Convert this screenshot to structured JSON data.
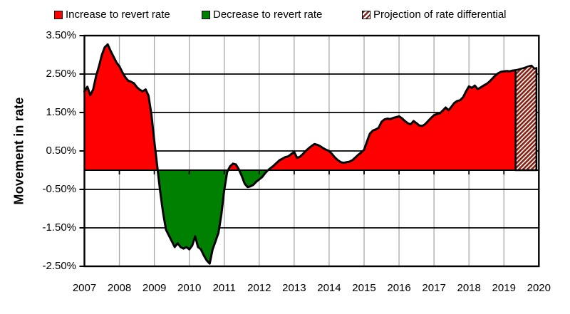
{
  "legend": {
    "items": [
      {
        "label": "Increase to revert rate",
        "swatch": "red-solid"
      },
      {
        "label": "Decrease to revert rate",
        "swatch": "green-solid"
      },
      {
        "label": "Projection of rate differential",
        "swatch": "red-hatch"
      }
    ]
  },
  "y_axis": {
    "title": "Movement in rate",
    "tick_labels": [
      "3.50%",
      "2.50%",
      "1.50%",
      "0.50%",
      "-0.50%",
      "-1.50%",
      "-2.50%"
    ],
    "tick_values": [
      3.5,
      2.5,
      1.5,
      0.5,
      -0.5,
      -1.5,
      -2.5
    ]
  },
  "x_axis": {
    "tick_labels": [
      "2007",
      "2008",
      "2009",
      "2010",
      "2011",
      "2012",
      "2013",
      "2014",
      "2015",
      "2016",
      "2017",
      "2018",
      "2019",
      "2020"
    ],
    "tick_values": [
      2007,
      2008,
      2009,
      2010,
      2011,
      2012,
      2013,
      2014,
      2015,
      2016,
      2017,
      2018,
      2019,
      2020
    ]
  },
  "colors": {
    "increase_fill": "#FF0000",
    "decrease_fill": "#008000",
    "projection_hatch": "#8B2314",
    "line": "#000000",
    "grid_horizontal": "#000000",
    "grid_vertical": "#A8A8A8",
    "border": "#000000"
  },
  "chart_data": {
    "type": "area",
    "title": "",
    "xlabel": "",
    "ylabel": "Movement in rate",
    "unit": "percent",
    "ylim": [
      -2.5,
      3.5
    ],
    "xlim": [
      2007,
      2020
    ],
    "grid": "horizontal black major lines every 1.00%, vertical gray lines every year",
    "legend_position": "top-center",
    "series": [
      {
        "name": "Movement in rate (actual)",
        "start": "2007-01",
        "frequency": "monthly",
        "fill_positive": "#FF0000",
        "fill_negative": "#008000",
        "values": [
          2.05,
          2.17,
          1.95,
          2.1,
          2.45,
          2.7,
          3.0,
          3.2,
          3.27,
          3.1,
          2.95,
          2.8,
          2.7,
          2.55,
          2.42,
          2.33,
          2.3,
          2.26,
          2.16,
          2.09,
          2.05,
          2.1,
          1.94,
          1.45,
          0.75,
          0.1,
          -0.55,
          -1.11,
          -1.55,
          -1.7,
          -1.85,
          -2.0,
          -1.9,
          -2.0,
          -2.04,
          -2.0,
          -2.06,
          -1.96,
          -1.72,
          -2.0,
          -2.06,
          -2.22,
          -2.35,
          -2.43,
          -2.06,
          -1.85,
          -1.63,
          -1.15,
          -0.52,
          -0.05,
          0.1,
          0.17,
          0.15,
          0.02,
          -0.15,
          -0.35,
          -0.44,
          -0.42,
          -0.38,
          -0.3,
          -0.24,
          -0.18,
          -0.08,
          0.0,
          0.06,
          0.12,
          0.19,
          0.26,
          0.3,
          0.34,
          0.36,
          0.42,
          0.47,
          0.32,
          0.35,
          0.42,
          0.5,
          0.57,
          0.63,
          0.68,
          0.66,
          0.62,
          0.57,
          0.53,
          0.5,
          0.42,
          0.33,
          0.26,
          0.21,
          0.19,
          0.21,
          0.22,
          0.26,
          0.33,
          0.4,
          0.46,
          0.53,
          0.75,
          0.95,
          1.03,
          1.06,
          1.1,
          1.26,
          1.32,
          1.34,
          1.33,
          1.36,
          1.38,
          1.4,
          1.35,
          1.28,
          1.22,
          1.19,
          1.28,
          1.22,
          1.16,
          1.15,
          1.2,
          1.28,
          1.36,
          1.43,
          1.46,
          1.48,
          1.55,
          1.63,
          1.56,
          1.65,
          1.75,
          1.8,
          1.82,
          1.9,
          2.05,
          2.18,
          2.14,
          2.2,
          2.11,
          2.15,
          2.2,
          2.24,
          2.3,
          2.38,
          2.46,
          2.52,
          2.56,
          2.57,
          2.58,
          2.57,
          2.59,
          2.6
        ]
      },
      {
        "name": "Projection of rate differential",
        "style": "hatched",
        "hatch_color": "#8B2314",
        "points": [
          [
            2019.333,
            2.6
          ],
          [
            2019.42,
            2.62
          ],
          [
            2019.5,
            2.64
          ],
          [
            2019.58,
            2.66
          ],
          [
            2019.67,
            2.69
          ],
          [
            2019.73,
            2.71
          ],
          [
            2019.79,
            2.72
          ],
          [
            2019.83,
            2.68
          ],
          [
            2019.88,
            2.64
          ],
          [
            2019.93,
            2.66
          ]
        ]
      }
    ]
  }
}
